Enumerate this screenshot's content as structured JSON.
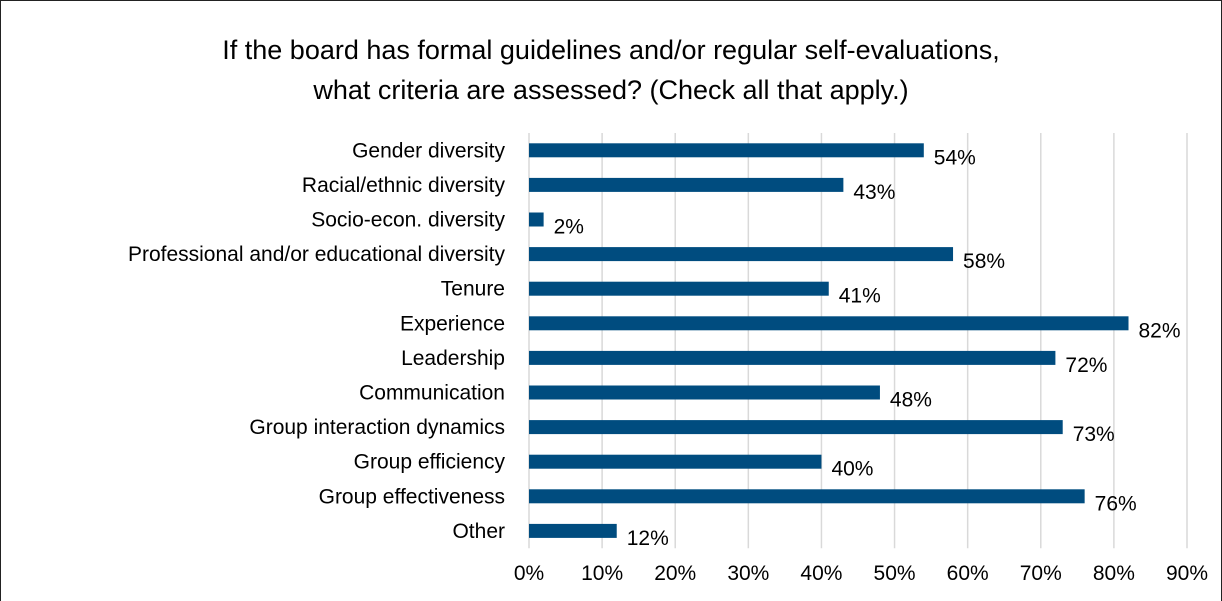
{
  "chart_data": {
    "type": "bar",
    "orientation": "horizontal",
    "title_lines": [
      "If the board has formal guidelines and/or regular self-evaluations,",
      "what criteria are assessed? (Check all that apply.)"
    ],
    "categories": [
      "Gender diversity",
      "Racial/ethnic diversity",
      "Socio-econ. diversity",
      "Professional and/or educational diversity",
      "Tenure",
      "Experience",
      "Leadership",
      "Communication",
      "Group interaction dynamics",
      "Group efficiency",
      "Group effectiveness",
      "Other"
    ],
    "values": [
      54,
      43,
      2,
      58,
      41,
      82,
      72,
      48,
      73,
      40,
      76,
      12
    ],
    "value_labels": [
      "54%",
      "43%",
      "2%",
      "58%",
      "41%",
      "82%",
      "72%",
      "48%",
      "73%",
      "40%",
      "76%",
      "12%"
    ],
    "x_ticks": [
      0,
      10,
      20,
      30,
      40,
      50,
      60,
      70,
      80,
      90
    ],
    "x_tick_labels": [
      "0%",
      "10%",
      "20%",
      "30%",
      "40%",
      "50%",
      "60%",
      "70%",
      "80%",
      "90%"
    ],
    "xlim": [
      0,
      90
    ],
    "grid": "vertical",
    "legend": "none",
    "bar_color": "#004c7f",
    "grid_color": "#d9d9d9"
  }
}
